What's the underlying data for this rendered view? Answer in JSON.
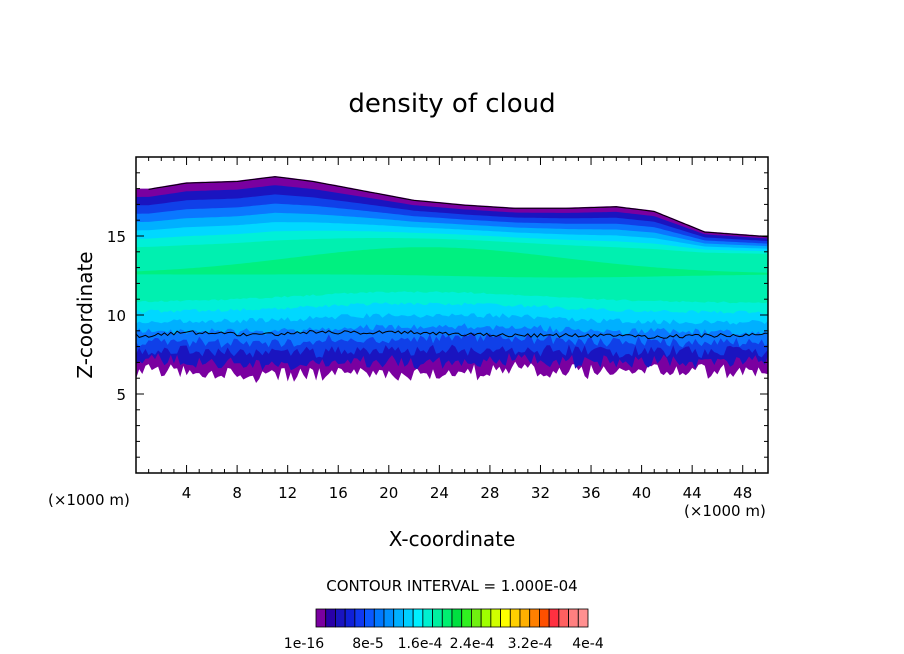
{
  "chart_data": {
    "type": "heatmap",
    "title": "density of cloud",
    "xlabel": "X-coordinate",
    "ylabel": "Z-coordinate",
    "x_unit_left": "(×1000 m)",
    "x_unit_right": "(×1000 m)",
    "xlim": [
      0,
      50
    ],
    "ylim": [
      0,
      20
    ],
    "x_ticks": [
      4,
      8,
      12,
      16,
      20,
      24,
      28,
      32,
      36,
      40,
      44,
      48
    ],
    "y_ticks": [
      5,
      10,
      15
    ],
    "contour_interval_text": "CONTOUR INTERVAL = 1.000E-04",
    "colorbar": {
      "labels": [
        "1e-16",
        "8e-5",
        "1.6e-4",
        "2.4e-4",
        "3.2e-4",
        "4e-4"
      ],
      "colors": [
        "#7a00a0",
        "#2a00a8",
        "#1a14c0",
        "#1020d8",
        "#1038f0",
        "#0a58ff",
        "#0078ff",
        "#0090ff",
        "#00b0ff",
        "#00d0ff",
        "#00f0ff",
        "#00f0d0",
        "#00f0a0",
        "#00f070",
        "#00e040",
        "#30f020",
        "#70f010",
        "#a0ff00",
        "#d0ff00",
        "#ffff00",
        "#ffd000",
        "#ffb000",
        "#ff8000",
        "#ff5000",
        "#ff3040",
        "#ff6060",
        "#ff8080",
        "#ff9090"
      ]
    },
    "field_layers": [
      {
        "value": 1e-16,
        "color": "#7a00a0"
      },
      {
        "value": 1e-05,
        "color": "#1a14c0"
      },
      {
        "value": 2e-05,
        "color": "#1040e8"
      },
      {
        "value": 3e-05,
        "color": "#0a78ff"
      },
      {
        "value": 4e-05,
        "color": "#00b0ff"
      },
      {
        "value": 5e-05,
        "color": "#00d8ff"
      },
      {
        "value": 6e-05,
        "color": "#00f0d8"
      },
      {
        "value": 7e-05,
        "color": "#00f0b0"
      },
      {
        "value": 8e-05,
        "color": "#00f080"
      }
    ],
    "cloud_top_km": [
      18.0,
      18.4,
      18.5,
      18.8,
      18.5,
      17.9,
      17.3,
      17.0,
      16.8,
      16.8,
      16.9,
      16.6,
      15.3,
      15.0
    ],
    "cloud_top_x_km": [
      1,
      4,
      8,
      11,
      14,
      18,
      22,
      26,
      30,
      34,
      38,
      41,
      45,
      50
    ],
    "cloud_base_km": [
      6.5,
      6.4,
      6.2,
      6.1,
      6.2,
      6.3,
      6.2,
      6.4,
      6.5,
      6.4,
      6.3,
      6.4,
      6.4,
      6.4
    ],
    "contour_lower_km": [
      8.7,
      8.9,
      8.8,
      8.8,
      8.9,
      8.9,
      8.9,
      8.8,
      8.7,
      8.7,
      8.7,
      8.6,
      8.7,
      8.8
    ]
  }
}
